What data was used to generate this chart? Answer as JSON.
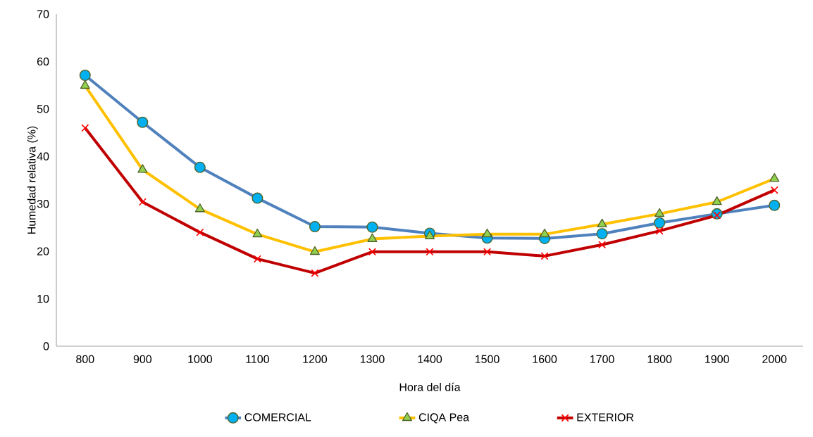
{
  "chart_data": {
    "type": "line",
    "xlabel": "Hora del día",
    "ylabel": "Humedad relativa (%)",
    "categories": [
      "800",
      "900",
      "1000",
      "1100",
      "1200",
      "1300",
      "1400",
      "1500",
      "1600",
      "1700",
      "1800",
      "1900",
      "2000"
    ],
    "series": [
      {
        "name": "COMERCIAL",
        "color": "#4f81bd",
        "marker": "circle",
        "values": [
          57.1,
          47.2,
          37.7,
          31.2,
          25.2,
          25.1,
          23.8,
          22.8,
          22.7,
          23.7,
          26.0,
          27.9,
          29.7
        ]
      },
      {
        "name": "CIQA Pea",
        "color": "#ffc000",
        "marker": "triangle",
        "values": [
          54.9,
          37.2,
          28.9,
          23.6,
          19.9,
          22.6,
          23.2,
          23.6,
          23.6,
          25.7,
          27.9,
          30.4,
          35.3
        ]
      },
      {
        "name": "EXTERIOR",
        "color": "#c00000",
        "marker": "cross",
        "values": [
          46.0,
          30.4,
          24.0,
          18.4,
          15.4,
          19.9,
          19.9,
          19.9,
          19.0,
          21.4,
          24.3,
          27.6,
          32.9
        ]
      }
    ],
    "ylim": [
      0,
      70
    ],
    "yticks": [
      0,
      10,
      20,
      30,
      40,
      50,
      60,
      70
    ],
    "grid": false,
    "legend": "bottom",
    "line_style": "solid"
  }
}
